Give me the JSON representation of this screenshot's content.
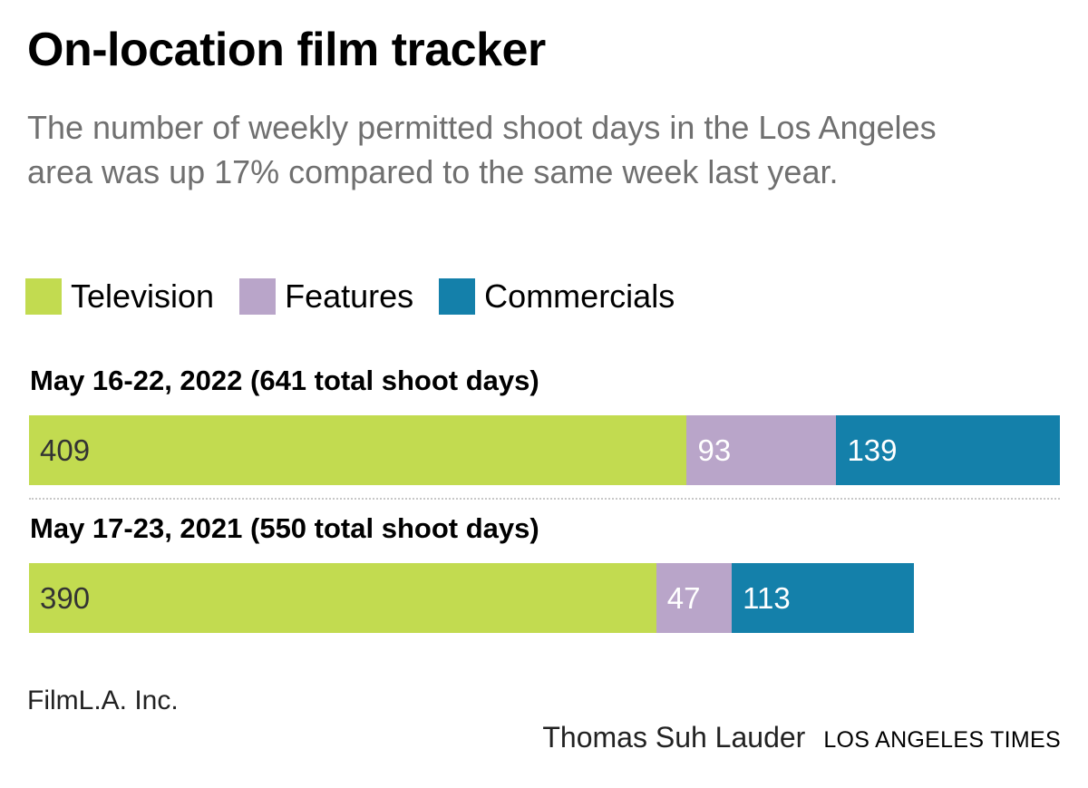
{
  "title": "On-location film tracker",
  "subtitle": "The number of weekly permitted shoot days in the Los Angeles area was up 17% compared to the same week last year.",
  "legend": [
    {
      "label": "Television",
      "color": "#c2db50"
    },
    {
      "label": "Features",
      "color": "#b9a5c9"
    },
    {
      "label": "Commercials",
      "color": "#1480aa"
    }
  ],
  "chart_data": {
    "type": "bar",
    "orientation": "horizontal",
    "stacked": true,
    "title": "On-location film tracker",
    "categories": [
      "May 16-22, 2022 (641 total shoot days)",
      "May 17-23, 2021 (550 total shoot days)"
    ],
    "series": [
      {
        "name": "Television",
        "color": "#c2db50",
        "values": [
          409,
          390
        ],
        "label_color": "#333333"
      },
      {
        "name": "Features",
        "color": "#b9a5c9",
        "values": [
          93,
          47
        ],
        "label_color": "#ffffff"
      },
      {
        "name": "Commercials",
        "color": "#1480aa",
        "values": [
          139,
          113
        ],
        "label_color": "#ffffff"
      }
    ],
    "totals": [
      641,
      550
    ],
    "xlim": [
      0,
      641
    ],
    "legend_position": "top-left",
    "grid": false
  },
  "source": "FilmL.A. Inc.",
  "credit": {
    "author": "Thomas Suh Lauder",
    "org": "LOS ANGELES TIMES"
  }
}
